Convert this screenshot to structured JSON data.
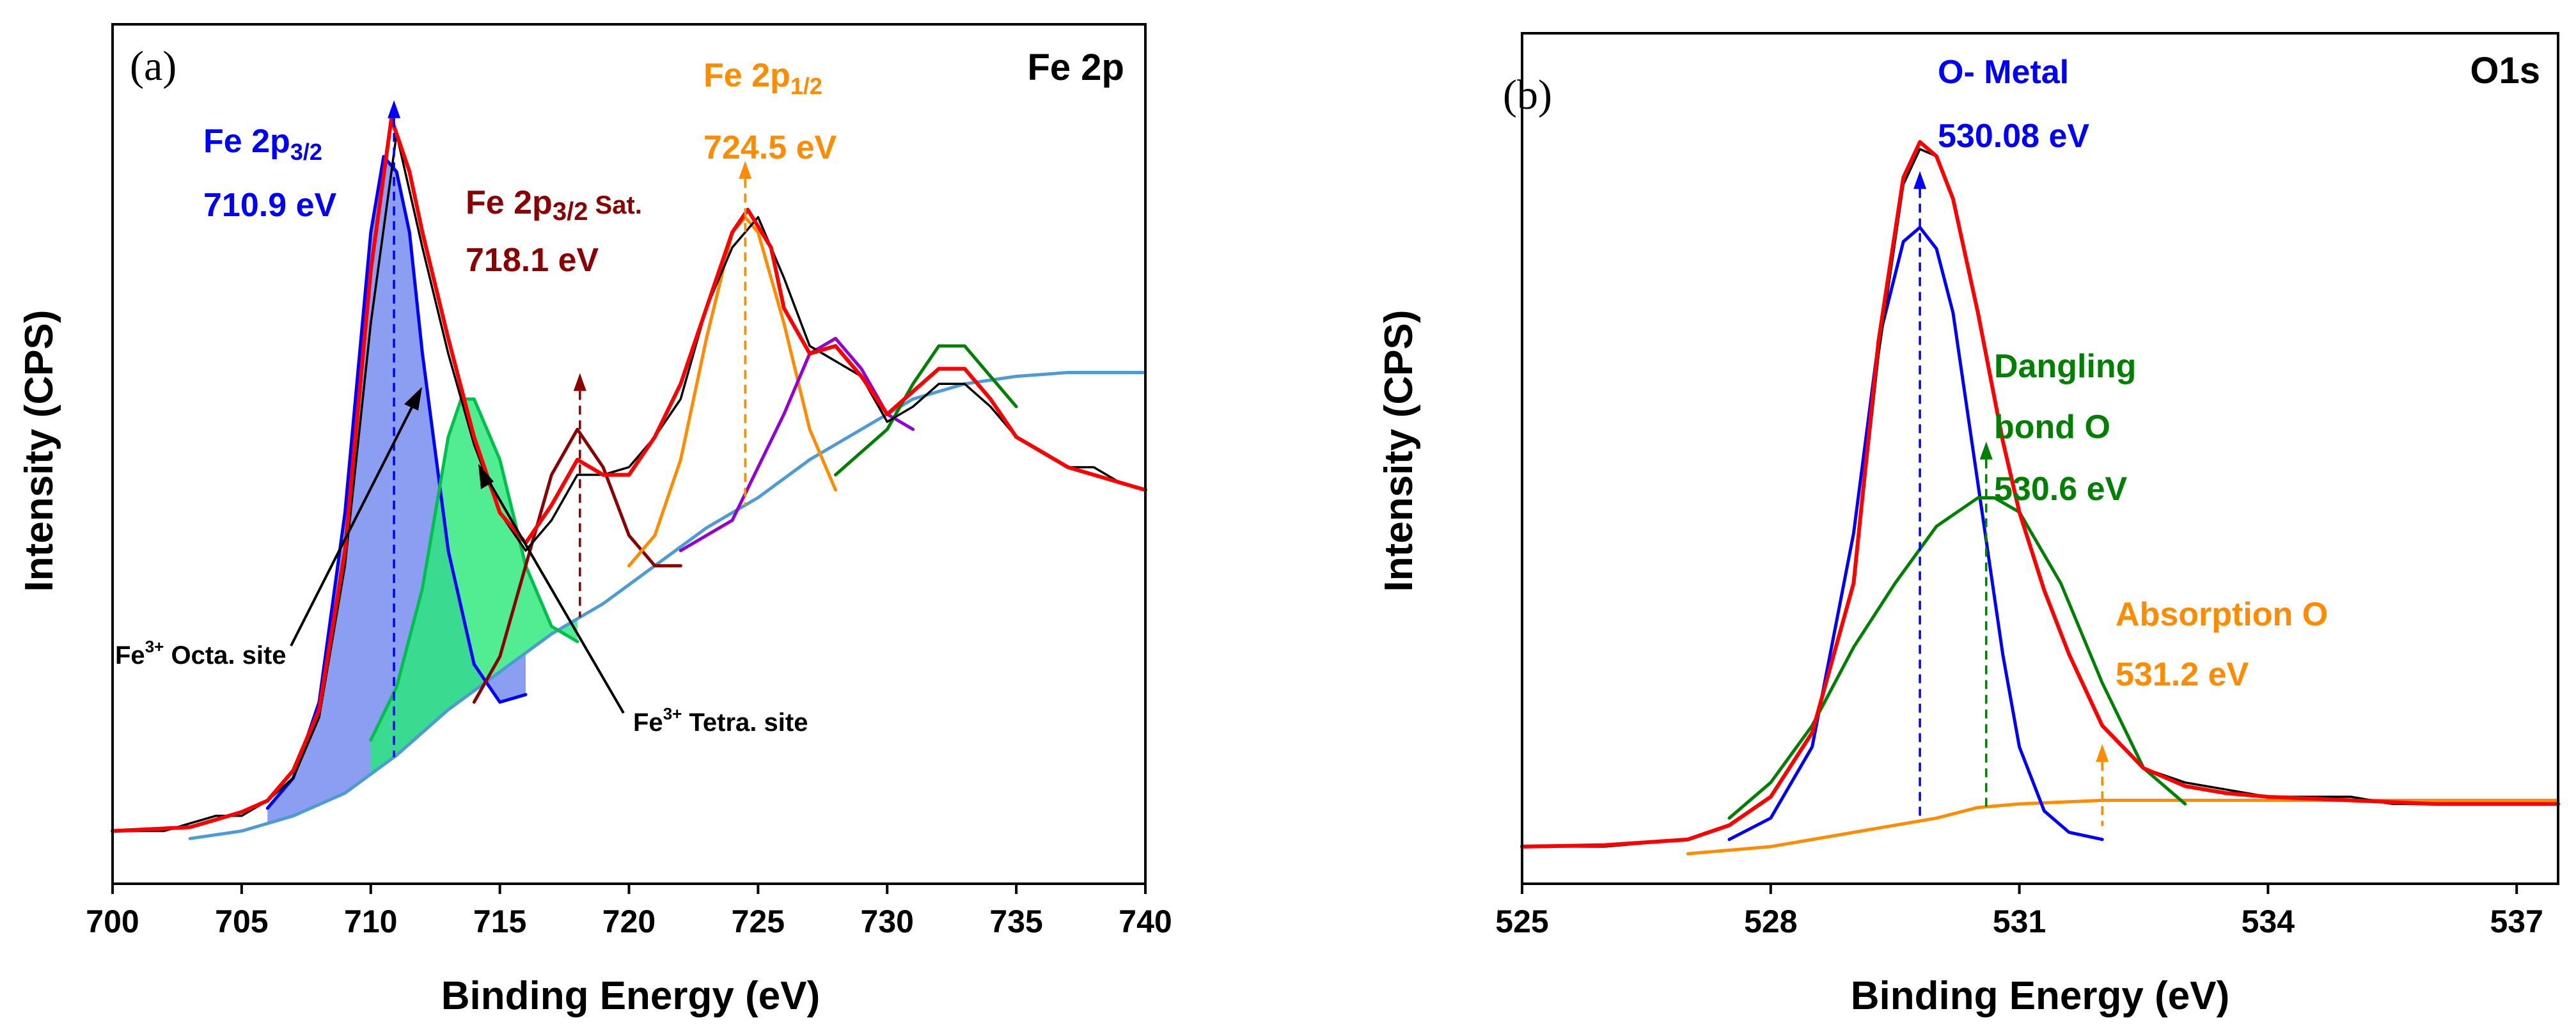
{
  "chart_data": [
    {
      "type": "line",
      "panel_label": "(a)",
      "title": "Fe 2p",
      "xlabel": "Binding Energy (eV)",
      "ylabel": "Intensity (CPS)",
      "xlim": [
        700,
        740
      ],
      "ylim": [
        0,
        100
      ],
      "x_ticks": [
        "700",
        "705",
        "710",
        "715",
        "720",
        "725",
        "730",
        "735",
        "740"
      ],
      "colors": {
        "raw": "#000000",
        "envelope": "#ff0000",
        "background": "#4d9bd6",
        "fe2p32": "#0000ff",
        "tetra": "#00c04b",
        "sat": "#8b0000",
        "fe2p12": "#ff8c00",
        "p1": "#9400d3",
        "p2": "#008000",
        "octa_fill": "#6f86ef",
        "tetra_fill": "#27e978"
      },
      "series": [
        {
          "key": "raw",
          "x": [
            700,
            702,
            703,
            704,
            705,
            706,
            707,
            708,
            709,
            710,
            711,
            712,
            713,
            714,
            715,
            716,
            717,
            718,
            719,
            720,
            721,
            722,
            723,
            724,
            725,
            726,
            727,
            728,
            729,
            730,
            731,
            732,
            733,
            734,
            735,
            736,
            737,
            738,
            739,
            740
          ],
          "y": [
            3,
            3,
            4,
            5,
            5,
            7,
            10,
            18,
            38,
            70,
            95,
            80,
            66,
            54,
            45,
            40,
            44,
            50,
            50,
            51,
            55,
            60,
            72,
            80,
            84,
            76,
            67,
            65,
            63,
            57,
            59,
            62,
            62,
            59,
            55,
            53,
            51,
            51,
            49,
            48
          ]
        },
        {
          "key": "envelope",
          "x": [
            700,
            703,
            704,
            705,
            706,
            707,
            708,
            709,
            710,
            710.8,
            711.5,
            712,
            713,
            714,
            715,
            716,
            717,
            718,
            719,
            720,
            721,
            722,
            723,
            724,
            724.6,
            725.5,
            726,
            727,
            728,
            729,
            730,
            731,
            732,
            733,
            734,
            735,
            736,
            737,
            738,
            739,
            740
          ],
          "y": [
            3,
            3.5,
            4.5,
            5.5,
            7,
            11,
            19,
            40,
            77,
            97,
            90,
            82,
            68,
            55,
            45,
            41,
            46,
            52,
            50,
            50,
            55,
            62,
            72,
            82,
            85,
            80,
            72,
            66,
            67,
            63,
            58,
            61,
            64,
            64,
            60,
            55,
            53,
            51,
            50,
            49,
            48
          ]
        },
        {
          "key": "background",
          "x": [
            703,
            705,
            707,
            709,
            711,
            713,
            715,
            717,
            719,
            721,
            723,
            725,
            727,
            729,
            731,
            733,
            735,
            737,
            739,
            740
          ],
          "y": [
            2,
            3,
            5,
            8,
            13,
            19,
            24,
            29,
            33,
            38,
            43,
            47,
            52,
            56,
            60,
            62,
            63,
            63.5,
            63.5,
            63.5
          ]
        },
        {
          "key": "fe2p32",
          "x": [
            706,
            707,
            708,
            709,
            710,
            710.5,
            711,
            711.5,
            712,
            713,
            714,
            715,
            716
          ],
          "y": [
            6,
            10,
            20,
            45,
            82,
            92,
            90,
            82,
            66,
            40,
            25,
            20,
            21
          ]
        },
        {
          "key": "tetra",
          "x": [
            710,
            711,
            712,
            713,
            713.5,
            714,
            715,
            716,
            717,
            718
          ],
          "y": [
            15,
            22,
            35,
            55,
            60,
            60,
            52,
            38,
            30,
            28
          ]
        },
        {
          "key": "sat",
          "x": [
            714,
            715,
            716,
            717,
            718,
            719,
            720,
            721,
            722
          ],
          "y": [
            20,
            26,
            38,
            50,
            56,
            51,
            42,
            38,
            38
          ]
        },
        {
          "key": "fe2p12",
          "x": [
            720,
            721,
            722,
            723,
            724,
            724.5,
            725,
            726,
            727,
            728
          ],
          "y": [
            38,
            42,
            52,
            68,
            82,
            84,
            82,
            70,
            56,
            48
          ]
        },
        {
          "key": "p1",
          "x": [
            722,
            724,
            726,
            727,
            728,
            729,
            730,
            731
          ],
          "y": [
            40,
            44,
            58,
            66,
            68,
            64,
            58,
            56
          ]
        },
        {
          "key": "p2",
          "x": [
            728,
            729,
            730,
            731,
            732,
            733,
            734,
            735
          ],
          "y": [
            50,
            53,
            56,
            62,
            67,
            67,
            63,
            59
          ]
        }
      ],
      "annotations": [
        {
          "text_main": "Fe 2p",
          "text_sub": "3/2",
          "energy": "710.9 eV",
          "x": 710.9,
          "color": "#0000ff"
        },
        {
          "text_main": "Fe 2p",
          "text_sub": "1/2",
          "energy": "724.5 eV",
          "x": 724.5,
          "color": "#ff8c00"
        },
        {
          "text_main": "Fe 2p",
          "text_sub": "3/2",
          "text_tail": " Sat.",
          "energy": "718.1 eV",
          "x": 718.1,
          "color": "#8b0000"
        }
      ],
      "callouts": [
        {
          "text_main": "Fe",
          "sup": "3+",
          "text_tail": " Octa. site"
        },
        {
          "text_main": "Fe",
          "sup": "3+",
          "text_tail": " Tetra. site"
        }
      ]
    },
    {
      "type": "line",
      "panel_label": "(b)",
      "title": "O1s",
      "xlabel": "Binding Energy (eV)",
      "ylabel": "Intensity (CPS)",
      "xlim": [
        525,
        537.5
      ],
      "ylim": [
        0,
        100
      ],
      "x_ticks": [
        "525",
        "528",
        "531",
        "534",
        "537"
      ],
      "colors": {
        "raw": "#000000",
        "envelope": "#ff0000",
        "background": "#ff8c00",
        "o_metal": "#0000ff",
        "dangling": "#008000"
      },
      "series": [
        {
          "key": "raw",
          "x": [
            525,
            526,
            527,
            527.5,
            528,
            528.5,
            529,
            529.3,
            529.6,
            529.8,
            530,
            530.2,
            530.5,
            530.8,
            531,
            531.3,
            531.6,
            532,
            532.5,
            533,
            533.5,
            534,
            534.5,
            535,
            535.5,
            536,
            536.5,
            537,
            537.5
          ],
          "y": [
            1,
            1,
            2,
            4,
            8,
            17,
            38,
            70,
            94,
            99,
            98,
            92,
            76,
            58,
            48,
            37,
            28,
            18,
            12,
            10,
            9,
            8,
            8,
            8,
            7,
            7,
            7,
            7,
            7
          ]
        },
        {
          "key": "envelope",
          "x": [
            525,
            526,
            527,
            527.5,
            528,
            528.5,
            529,
            529.3,
            529.6,
            529.8,
            530,
            530.2,
            530.5,
            530.8,
            531,
            531.3,
            531.6,
            532,
            532.5,
            533,
            533.5,
            534,
            535,
            536,
            537,
            537.5
          ],
          "y": [
            1,
            1.2,
            2,
            4,
            8,
            17,
            38,
            72,
            95,
            100,
            98,
            92,
            76,
            58,
            48,
            37,
            28,
            18,
            12,
            9.5,
            8.5,
            8,
            7.5,
            7,
            7,
            7
          ]
        },
        {
          "key": "o_metal",
          "x": [
            527.5,
            528,
            528.5,
            529,
            529.3,
            529.6,
            529.8,
            530,
            530.2,
            530.5,
            530.8,
            531,
            531.3,
            531.6,
            532
          ],
          "y": [
            2,
            5,
            15,
            45,
            72,
            86,
            88,
            85,
            76,
            52,
            28,
            15,
            6,
            3,
            2
          ]
        },
        {
          "key": "dangling",
          "x": [
            527.5,
            528,
            528.5,
            529,
            529.5,
            530,
            530.5,
            530.7,
            531,
            531.5,
            532,
            532.5,
            533
          ],
          "y": [
            5,
            10,
            18,
            29,
            38,
            46,
            50,
            50,
            48,
            38,
            24,
            12,
            7
          ]
        },
        {
          "key": "background",
          "x": [
            527,
            528,
            529,
            530,
            530.5,
            531,
            532,
            533,
            534,
            535,
            536,
            537,
            537.5
          ],
          "y": [
            0,
            1,
            3,
            5,
            6.5,
            7,
            7.5,
            7.5,
            7.5,
            7.5,
            7.5,
            7.5,
            7.5
          ]
        }
      ],
      "annotations": [
        {
          "lines": [
            "O- Metal",
            "530.08 eV"
          ],
          "x": 529.8,
          "color": "#0000ff"
        },
        {
          "lines": [
            "Dangling",
            "bond O",
            "530.6 eV"
          ],
          "x": 530.6,
          "color": "#008000"
        },
        {
          "lines": [
            "Absorption O",
            "531.2 eV"
          ],
          "x": 532,
          "color": "#ff8c00"
        }
      ]
    }
  ]
}
